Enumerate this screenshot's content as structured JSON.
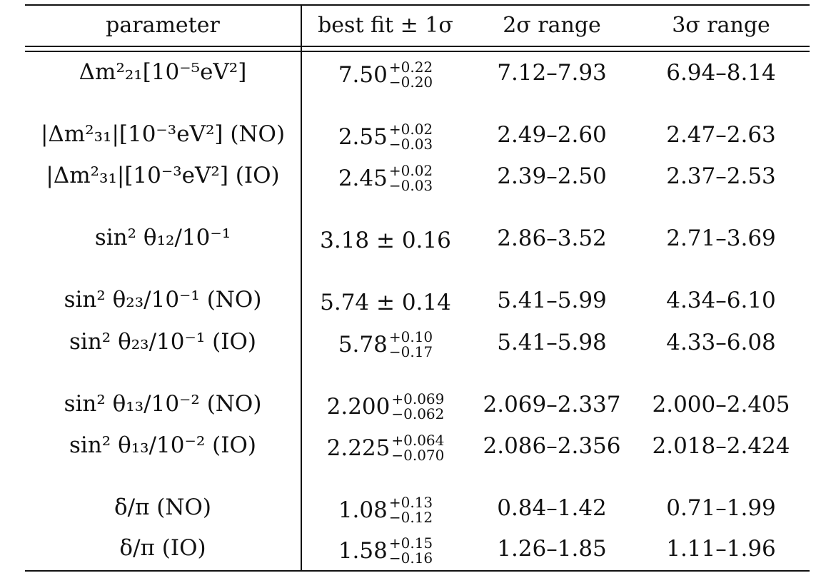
{
  "table": {
    "headers": {
      "parameter": "parameter",
      "best_fit": "best fit ± 1σ",
      "range2": "2σ range",
      "range3": "3σ range"
    },
    "rows": [
      {
        "label": "Δm²₂₁[10⁻⁵eV²]",
        "best": "7.50",
        "plus": "+0.22",
        "minus": "−0.20",
        "r2": "7.12–7.93",
        "r3": "6.94–8.14"
      },
      {
        "label": "|Δm²₃₁|[10⁻³eV²] (NO)",
        "best": "2.55",
        "plus": "+0.02",
        "minus": "−0.03",
        "r2": "2.49–2.60",
        "r3": "2.47–2.63"
      },
      {
        "label": "|Δm²₃₁|[10⁻³eV²] (IO)",
        "best": "2.45",
        "plus": "+0.02",
        "minus": "−0.03",
        "r2": "2.39–2.50",
        "r3": "2.37–2.53"
      },
      {
        "label": "sin² θ₁₂/10⁻¹",
        "best": "3.18 ± 0.16",
        "r2": "2.86–3.52",
        "r3": "2.71–3.69"
      },
      {
        "label": "sin² θ₂₃/10⁻¹ (NO)",
        "best": "5.74 ± 0.14",
        "r2": "5.41–5.99",
        "r3": "4.34–6.10"
      },
      {
        "label": "sin² θ₂₃/10⁻¹ (IO)",
        "best": "5.78",
        "plus": "+0.10",
        "minus": "−0.17",
        "r2": "5.41–5.98",
        "r3": "4.33–6.08"
      },
      {
        "label": "sin² θ₁₃/10⁻² (NO)",
        "best": "2.200",
        "plus": "+0.069",
        "minus": "−0.062",
        "r2": "2.069–2.337",
        "r3": "2.000–2.405"
      },
      {
        "label": "sin² θ₁₃/10⁻² (IO)",
        "best": "2.225",
        "plus": "+0.064",
        "minus": "−0.070",
        "r2": "2.086–2.356",
        "r3": "2.018–2.424"
      },
      {
        "label": "δ/π (NO)",
        "best": "1.08",
        "plus": "+0.13",
        "minus": "−0.12",
        "r2": "0.84–1.42",
        "r3": "0.71–1.99"
      },
      {
        "label": "δ/π (IO)",
        "best": "1.58",
        "plus": "+0.15",
        "minus": "−0.16",
        "r2": "1.26–1.85",
        "r3": "1.11–1.96"
      }
    ]
  }
}
